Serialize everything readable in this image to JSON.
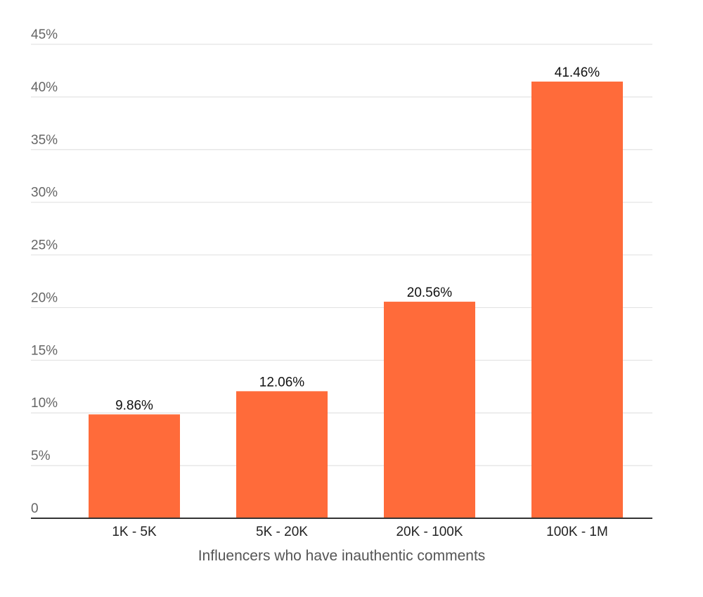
{
  "chart_data": {
    "type": "bar",
    "title": "",
    "xlabel": "Influencers who have inauthentic comments",
    "ylabel": "",
    "categories": [
      "1K - 5K",
      "5K - 20K",
      "20K - 100K",
      "100K - 1M"
    ],
    "values": [
      9.86,
      12.06,
      20.56,
      41.46
    ],
    "value_labels": [
      "9.86%",
      "12.06%",
      "20.56%",
      "41.46%"
    ],
    "ylim": [
      0,
      45
    ],
    "y_ticks": [
      0,
      5,
      10,
      15,
      20,
      25,
      30,
      35,
      40,
      45
    ],
    "y_tick_labels": [
      "0",
      "5%",
      "10%",
      "15%",
      "20%",
      "25%",
      "30%",
      "35%",
      "40%",
      "45%"
    ],
    "grid": true,
    "legend": "none",
    "bar_color": "#ff6b3a"
  }
}
